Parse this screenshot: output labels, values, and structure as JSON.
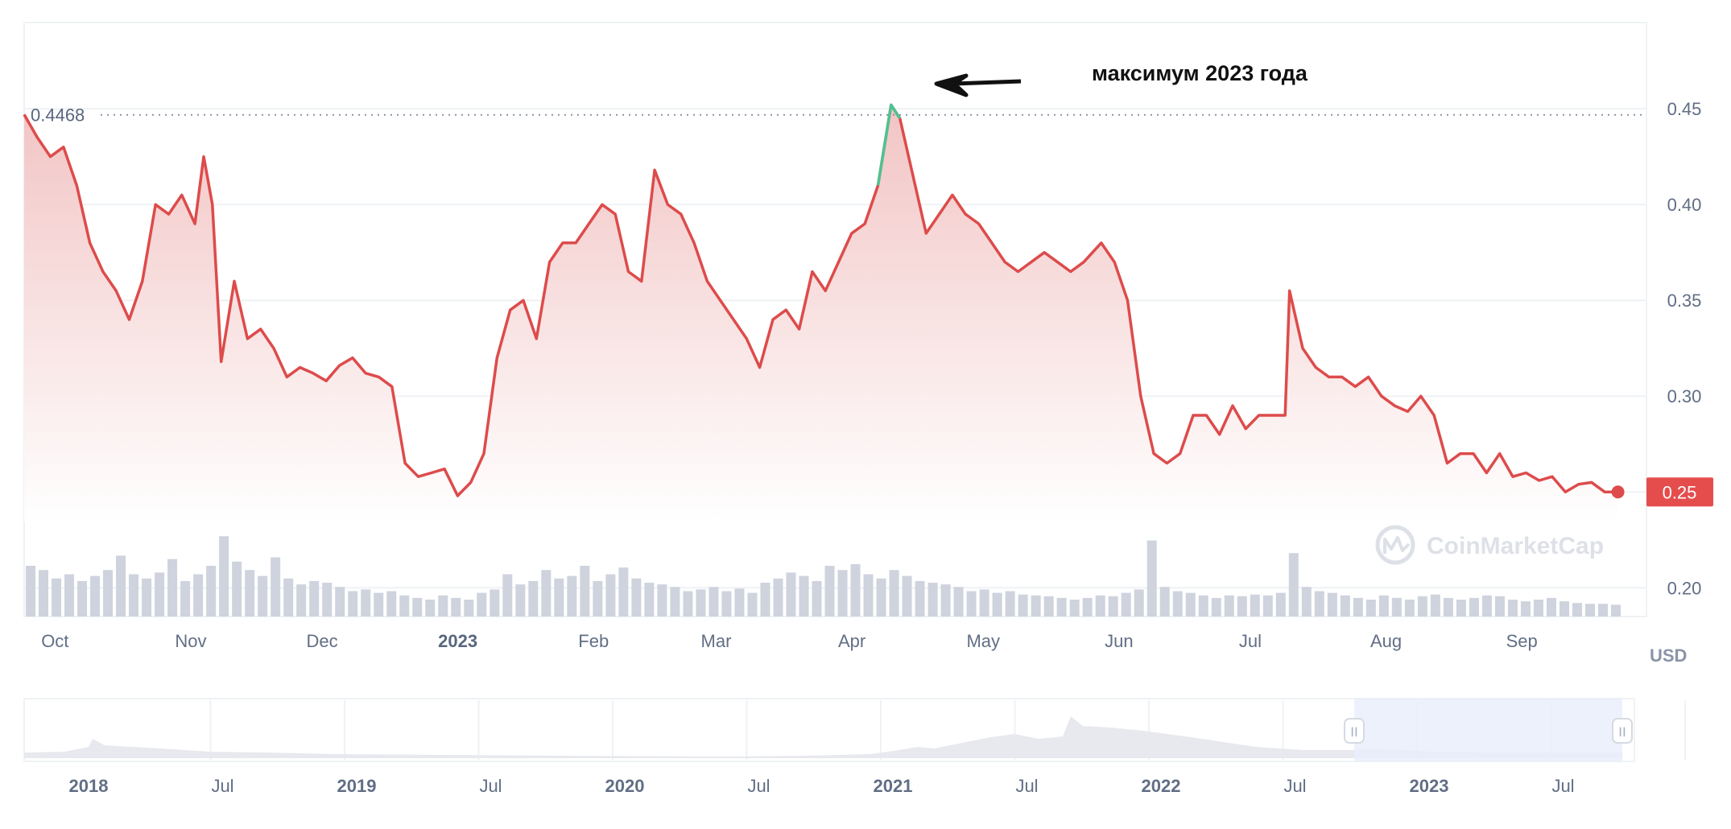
{
  "colors": {
    "line": "#dd4b4b",
    "peak": "#4dc38f",
    "area_top": "#f2c4c4",
    "area_bottom": "#ffffff",
    "volume": "#ced3dd",
    "grid": "#eff2f5",
    "price_label_bg": "#e54d4d",
    "navigator_fill": "#e9eefb",
    "navigator_area": "#e7e9ee"
  },
  "annotation": {
    "text": "максимум 2023 года"
  },
  "reference_label": "0.4468",
  "current_price_label": "0.25",
  "currency_label": "USD",
  "watermark": "CoinMarketCap",
  "chart_data": {
    "type": "line",
    "title": "",
    "xlabel": "",
    "ylabel": "",
    "unit": "USD",
    "ylim": [
      0.185,
      0.495
    ],
    "yticks": [
      {
        "value": 0.45,
        "label": "0.45"
      },
      {
        "value": 0.4,
        "label": "0.40"
      },
      {
        "value": 0.35,
        "label": "0.35"
      },
      {
        "value": 0.3,
        "label": "0.30"
      },
      {
        "value": 0.25,
        "label": "0.25"
      },
      {
        "value": 0.2,
        "label": "0.20"
      }
    ],
    "xticks": [
      {
        "date": "2022-10-01",
        "label": "Oct",
        "bold": false
      },
      {
        "date": "2022-11-01",
        "label": "Nov",
        "bold": false
      },
      {
        "date": "2022-12-01",
        "label": "Dec",
        "bold": false
      },
      {
        "date": "2023-01-01",
        "label": "2023",
        "bold": true
      },
      {
        "date": "2023-02-01",
        "label": "Feb",
        "bold": false
      },
      {
        "date": "2023-03-01",
        "label": "Mar",
        "bold": false
      },
      {
        "date": "2023-04-01",
        "label": "Apr",
        "bold": false
      },
      {
        "date": "2023-05-01",
        "label": "May",
        "bold": false
      },
      {
        "date": "2023-06-01",
        "label": "Jun",
        "bold": false
      },
      {
        "date": "2023-07-01",
        "label": "Jul",
        "bold": false
      },
      {
        "date": "2023-08-01",
        "label": "Aug",
        "bold": false
      },
      {
        "date": "2023-09-01",
        "label": "Sep",
        "bold": false
      }
    ],
    "x_range": [
      "2022-09-28",
      "2023-09-28"
    ],
    "reference_value": 0.4468,
    "current_value": 0.25,
    "peak_date": "2023-04-14",
    "series": [
      {
        "x": [
          "2022-09-28",
          "2022-10-01",
          "2022-10-04",
          "2022-10-07",
          "2022-10-10",
          "2022-10-13",
          "2022-10-16",
          "2022-10-19",
          "2022-10-22",
          "2022-10-25",
          "2022-10-28",
          "2022-10-31",
          "2022-11-03",
          "2022-11-06",
          "2022-11-08",
          "2022-11-10",
          "2022-11-12",
          "2022-11-15",
          "2022-11-18",
          "2022-11-21",
          "2022-11-24",
          "2022-11-27",
          "2022-11-30",
          "2022-12-03",
          "2022-12-06",
          "2022-12-09",
          "2022-12-12",
          "2022-12-15",
          "2022-12-18",
          "2022-12-21",
          "2022-12-24",
          "2022-12-27",
          "2022-12-30",
          "2023-01-02",
          "2023-01-05",
          "2023-01-08",
          "2023-01-11",
          "2023-01-14",
          "2023-01-17",
          "2023-01-20",
          "2023-01-23",
          "2023-01-26",
          "2023-01-29",
          "2023-02-01",
          "2023-02-04",
          "2023-02-07",
          "2023-02-10",
          "2023-02-13",
          "2023-02-16",
          "2023-02-19",
          "2023-02-22",
          "2023-02-25",
          "2023-02-28",
          "2023-03-03",
          "2023-03-06",
          "2023-03-09",
          "2023-03-12",
          "2023-03-15",
          "2023-03-18",
          "2023-03-21",
          "2023-03-24",
          "2023-03-27",
          "2023-03-30",
          "2023-04-02",
          "2023-04-05",
          "2023-04-08",
          "2023-04-11",
          "2023-04-14",
          "2023-04-16",
          "2023-04-19",
          "2023-04-22",
          "2023-04-25",
          "2023-04-28",
          "2023-05-01",
          "2023-05-04",
          "2023-05-07",
          "2023-05-10",
          "2023-05-13",
          "2023-05-16",
          "2023-05-19",
          "2023-05-22",
          "2023-05-25",
          "2023-05-28",
          "2023-06-01",
          "2023-06-04",
          "2023-06-07",
          "2023-06-10",
          "2023-06-13",
          "2023-06-16",
          "2023-06-19",
          "2023-06-22",
          "2023-06-25",
          "2023-06-28",
          "2023-07-01",
          "2023-07-04",
          "2023-07-07",
          "2023-07-10",
          "2023-07-13",
          "2023-07-14",
          "2023-07-17",
          "2023-07-20",
          "2023-07-23",
          "2023-07-26",
          "2023-07-29",
          "2023-08-01",
          "2023-08-04",
          "2023-08-07",
          "2023-08-10",
          "2023-08-13",
          "2023-08-16",
          "2023-08-19",
          "2023-08-22",
          "2023-08-25",
          "2023-08-28",
          "2023-08-31",
          "2023-09-03",
          "2023-09-06",
          "2023-09-09",
          "2023-09-12",
          "2023-09-15",
          "2023-09-18",
          "2023-09-21",
          "2023-09-24",
          "2023-09-27"
        ],
        "y": [
          0.447,
          0.435,
          0.425,
          0.43,
          0.41,
          0.38,
          0.365,
          0.355,
          0.34,
          0.36,
          0.4,
          0.395,
          0.405,
          0.39,
          0.425,
          0.4,
          0.318,
          0.36,
          0.33,
          0.335,
          0.325,
          0.31,
          0.315,
          0.312,
          0.308,
          0.316,
          0.32,
          0.312,
          0.31,
          0.305,
          0.265,
          0.258,
          0.26,
          0.262,
          0.248,
          0.255,
          0.27,
          0.32,
          0.345,
          0.35,
          0.33,
          0.37,
          0.38,
          0.38,
          0.39,
          0.4,
          0.395,
          0.365,
          0.36,
          0.418,
          0.4,
          0.395,
          0.38,
          0.36,
          0.35,
          0.34,
          0.33,
          0.315,
          0.34,
          0.345,
          0.335,
          0.365,
          0.355,
          0.37,
          0.385,
          0.39,
          0.41,
          0.452,
          0.445,
          0.415,
          0.385,
          0.395,
          0.405,
          0.395,
          0.39,
          0.38,
          0.37,
          0.365,
          0.37,
          0.375,
          0.37,
          0.365,
          0.37,
          0.38,
          0.37,
          0.35,
          0.3,
          0.27,
          0.265,
          0.27,
          0.29,
          0.29,
          0.28,
          0.295,
          0.283,
          0.29,
          0.29,
          0.29,
          0.355,
          0.325,
          0.315,
          0.31,
          0.31,
          0.305,
          0.31,
          0.3,
          0.295,
          0.292,
          0.3,
          0.29,
          0.265,
          0.27,
          0.27,
          0.26,
          0.27,
          0.258,
          0.26,
          0.256,
          0.258,
          0.25,
          0.254,
          0.255,
          0.25,
          0.25
        ]
      }
    ],
    "volume": [
      0.6,
      0.55,
      0.45,
      0.5,
      0.42,
      0.48,
      0.55,
      0.72,
      0.5,
      0.45,
      0.52,
      0.68,
      0.42,
      0.5,
      0.6,
      0.95,
      0.65,
      0.55,
      0.48,
      0.7,
      0.45,
      0.38,
      0.42,
      0.4,
      0.35,
      0.3,
      0.32,
      0.28,
      0.3,
      0.25,
      0.22,
      0.2,
      0.25,
      0.22,
      0.2,
      0.28,
      0.32,
      0.5,
      0.38,
      0.42,
      0.55,
      0.45,
      0.48,
      0.6,
      0.42,
      0.5,
      0.58,
      0.45,
      0.4,
      0.38,
      0.35,
      0.3,
      0.32,
      0.35,
      0.3,
      0.33,
      0.28,
      0.4,
      0.45,
      0.52,
      0.48,
      0.42,
      0.6,
      0.55,
      0.62,
      0.5,
      0.45,
      0.55,
      0.48,
      0.42,
      0.4,
      0.38,
      0.35,
      0.3,
      0.32,
      0.28,
      0.3,
      0.26,
      0.25,
      0.24,
      0.22,
      0.2,
      0.22,
      0.25,
      0.24,
      0.28,
      0.32,
      0.9,
      0.35,
      0.3,
      0.28,
      0.25,
      0.22,
      0.25,
      0.24,
      0.26,
      0.25,
      0.28,
      0.75,
      0.35,
      0.3,
      0.28,
      0.25,
      0.22,
      0.2,
      0.25,
      0.22,
      0.2,
      0.24,
      0.26,
      0.22,
      0.2,
      0.22,
      0.25,
      0.24,
      0.2,
      0.18,
      0.2,
      0.22,
      0.18,
      0.16,
      0.15,
      0.15,
      0.14
    ]
  },
  "navigator": {
    "labels": [
      {
        "text": "2018",
        "bold": true
      },
      {
        "text": "Jul",
        "bold": false
      },
      {
        "text": "2019",
        "bold": true
      },
      {
        "text": "Jul",
        "bold": false
      },
      {
        "text": "2020",
        "bold": true
      },
      {
        "text": "Jul",
        "bold": false
      },
      {
        "text": "2021",
        "bold": true
      },
      {
        "text": "Jul",
        "bold": false
      },
      {
        "text": "2022",
        "bold": true
      },
      {
        "text": "Jul",
        "bold": false
      },
      {
        "text": "2023",
        "bold": true
      },
      {
        "text": "Jul",
        "bold": false
      }
    ],
    "handle_glyph": "II"
  }
}
